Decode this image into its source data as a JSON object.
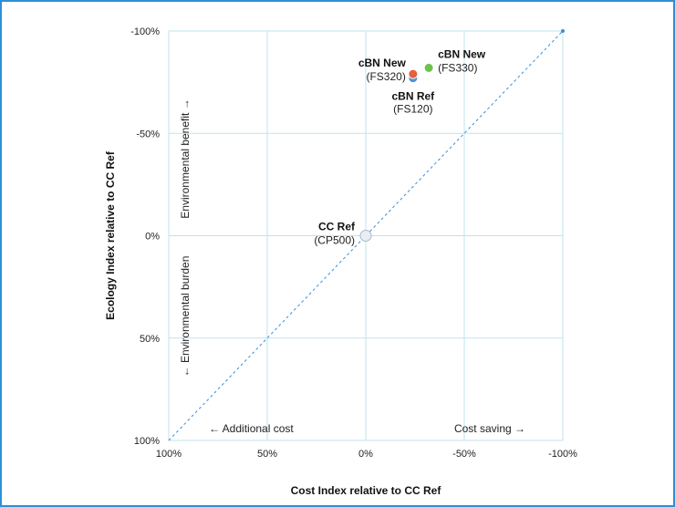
{
  "chart_data": {
    "type": "scatter",
    "xlabel": "Cost Index relative to CC Ref",
    "ylabel": "Ecology Index relative to CC Ref",
    "xlim": [
      100,
      -100
    ],
    "ylim": [
      100,
      -100
    ],
    "x_reversed": true,
    "y_reversed": true,
    "x_ticks": [
      "100%",
      "50%",
      "0%",
      "-50%",
      "-100%"
    ],
    "y_ticks": [
      "-100%",
      "-50%",
      "0%",
      "50%",
      "100%"
    ],
    "grid": true,
    "reference_line": {
      "style": "dashed",
      "from": [
        100,
        100
      ],
      "to": [
        -100,
        -100
      ]
    },
    "points": [
      {
        "name": "CC Ref",
        "code": "(CP500)",
        "x": 0,
        "y": 0,
        "color": "#e9eef5"
      },
      {
        "name": "cBN Ref",
        "code": "(FS120)",
        "x": -24,
        "y": -77,
        "color": "#4a90e2"
      },
      {
        "name": "cBN New",
        "code": "(FS320)",
        "x": -24,
        "y": -79,
        "color": "#e8603c"
      },
      {
        "name": "cBN New",
        "code": "(FS330)",
        "x": -32,
        "y": -82,
        "color": "#6cc24a"
      }
    ],
    "annotations": {
      "environmental_benefit": "Environmental benefit →",
      "environmental_burden": "← Environmental burden",
      "additional_cost": "← Additional cost",
      "cost_saving": "Cost saving →"
    }
  }
}
